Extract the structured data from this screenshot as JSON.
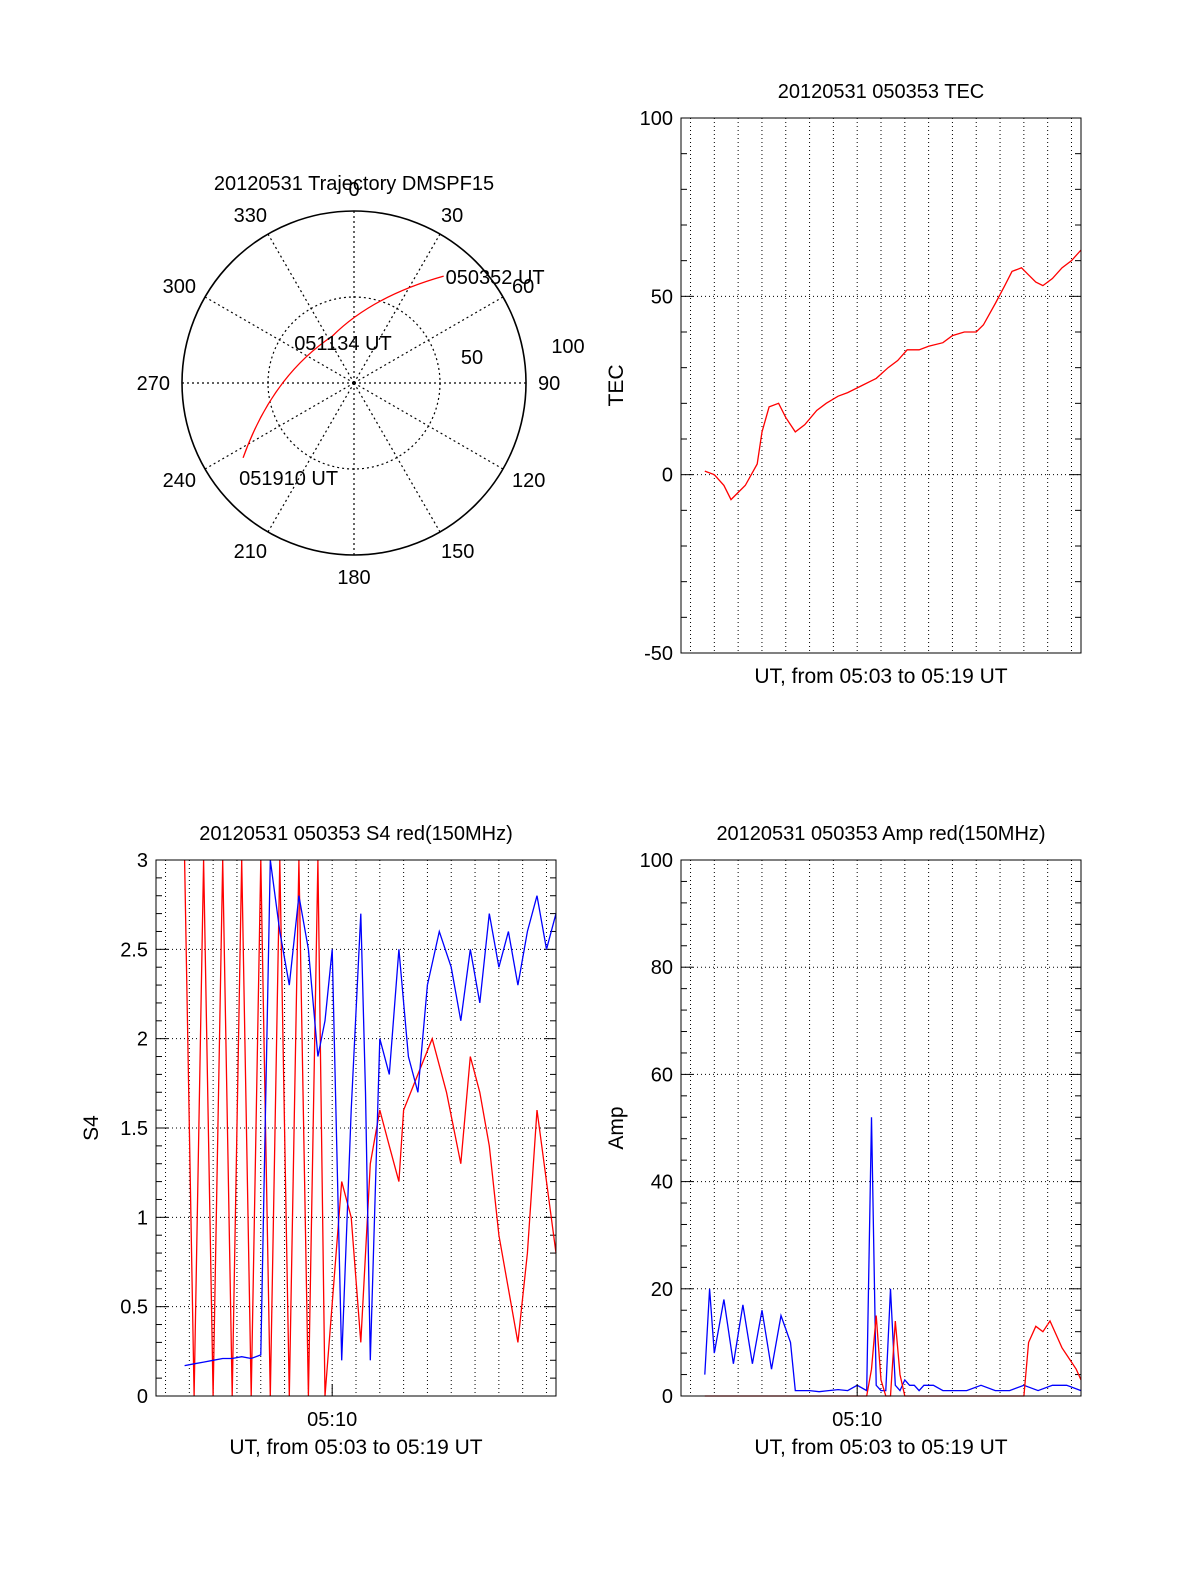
{
  "colors": {
    "red": "#ff0000",
    "blue": "#0000ff",
    "axis": "#000000",
    "grid": "#000000"
  },
  "chart_data": [
    {
      "id": "trajectory",
      "type": "polar-trajectory",
      "title": "20120531 Trajectory DMSPF15",
      "angle_labels": [
        "0",
        "30",
        "60",
        "90",
        "120",
        "150",
        "180",
        "210",
        "240",
        "270",
        "300",
        "330"
      ],
      "radius_labels": [
        "50",
        "100"
      ],
      "points": [
        {
          "azimuth": 40,
          "elevation": 17,
          "label": "050352 UT"
        },
        {
          "azimuth": 335,
          "elevation": 63,
          "label": "051134 UT"
        },
        {
          "azimuth": 236,
          "elevation": 20,
          "label": "051910 UT"
        }
      ],
      "grid": true
    },
    {
      "id": "tec",
      "type": "line",
      "title": "20120531 050353 TEC",
      "xlabel": "UT, from 05:03 to 05:19 UT",
      "ylabel": "TEC",
      "xlim": [
        "05:02.6",
        "05:19.4"
      ],
      "ylim": [
        -50,
        100
      ],
      "yticks": [
        "-50",
        "0",
        "50",
        "100"
      ],
      "grid": true,
      "series": [
        {
          "color": "red",
          "x": [
            3.6,
            4.0,
            4.4,
            4.7,
            5.0,
            5.3,
            5.8,
            6.0,
            6.3,
            6.7,
            7.0,
            7.4,
            7.8,
            8.3,
            8.7,
            9.2,
            9.6,
            10.2,
            10.8,
            11.3,
            11.7,
            12.1,
            12.6,
            13.0,
            13.6,
            14.0,
            14.5,
            15.0,
            15.3,
            15.8,
            16.2,
            16.5,
            16.9,
            17.2,
            17.5,
            17.8,
            18.2,
            18.6,
            19.0,
            19.4
          ],
          "y": [
            1,
            0,
            -3,
            -7,
            -5,
            -3,
            3,
            12,
            19,
            20,
            16,
            12,
            14,
            18,
            20,
            22,
            23,
            25,
            27,
            30,
            32,
            35,
            35,
            36,
            37,
            39,
            40,
            40,
            42,
            48,
            53,
            57,
            58,
            56,
            54,
            53,
            55,
            58,
            60,
            63
          ]
        }
      ]
    },
    {
      "id": "s4",
      "type": "line",
      "title": "20120531 050353 S4 red(150MHz)",
      "xlabel": "UT, from 05:03 to 05:19 UT",
      "ylabel": "S4",
      "xticklabel": "05:10",
      "xlim": [
        "05:02.6",
        "05:19.4"
      ],
      "ylim": [
        0,
        3
      ],
      "yticks": [
        "0",
        "0.5",
        "1",
        "1.5",
        "2",
        "2.5",
        "3"
      ],
      "grid": true,
      "series": [
        {
          "color": "red",
          "x": [
            3.8,
            4.2,
            4.6,
            5.0,
            5.4,
            5.8,
            6.2,
            6.6,
            7.0,
            7.4,
            7.8,
            8.2,
            8.6,
            9.0,
            9.4,
            9.7,
            10.4,
            10.8,
            11.2,
            11.6,
            12.0,
            12.4,
            12.8,
            13.0,
            13.6,
            14.2,
            14.8,
            15.4,
            15.8,
            16.2,
            16.6,
            17.0,
            17.4,
            17.8,
            18.2,
            18.6,
            19.0,
            19.4
          ],
          "y": [
            3,
            0,
            3,
            0,
            3,
            0,
            3,
            0,
            3,
            0,
            3,
            0,
            3,
            0,
            3,
            0,
            1.2,
            1.0,
            0.3,
            1.3,
            1.6,
            1.4,
            1.2,
            1.6,
            1.8,
            2.0,
            1.7,
            1.3,
            1.9,
            1.7,
            1.4,
            0.9,
            0.6,
            0.3,
            0.8,
            1.6,
            1.2,
            0.8
          ]
        },
        {
          "color": "blue",
          "x": [
            3.8,
            4.2,
            4.6,
            5.0,
            5.4,
            5.8,
            6.2,
            6.6,
            7.0,
            7.4,
            7.8,
            8.2,
            8.6,
            9.0,
            9.4,
            9.7,
            10.0,
            10.4,
            10.8,
            11.2,
            11.4,
            11.6,
            12.0,
            12.4,
            12.8,
            13.2,
            13.6,
            14.0,
            14.5,
            15.0,
            15.4,
            15.8,
            16.2,
            16.6,
            17.0,
            17.4,
            17.8,
            18.2,
            18.6,
            19.0,
            19.4
          ],
          "y": [
            0.17,
            0.18,
            0.19,
            0.2,
            0.21,
            0.21,
            0.22,
            0.21,
            0.23,
            3,
            2.6,
            2.3,
            2.8,
            2.5,
            1.9,
            2.1,
            2.5,
            0.2,
            1.6,
            2.7,
            1.7,
            0.2,
            2.0,
            1.8,
            2.5,
            1.9,
            1.7,
            2.3,
            2.6,
            2.4,
            2.1,
            2.5,
            2.2,
            2.7,
            2.4,
            2.6,
            2.3,
            2.6,
            2.8,
            2.5,
            2.7
          ]
        }
      ]
    },
    {
      "id": "amp",
      "type": "line",
      "title": "20120531 050353 Amp red(150MHz)",
      "xlabel": "UT, from 05:03 to 05:19 UT",
      "ylabel": "Amp",
      "xticklabel": "05:10",
      "xlim": [
        "05:02.6",
        "05:19.4"
      ],
      "ylim": [
        0,
        100
      ],
      "yticks": [
        "0",
        "20",
        "40",
        "60",
        "80",
        "100"
      ],
      "grid": true,
      "series": [
        {
          "color": "blue",
          "x": [
            3.6,
            3.8,
            4.0,
            4.4,
            4.8,
            5.2,
            5.6,
            6.0,
            6.4,
            6.8,
            7.2,
            7.4,
            7.6,
            8.0,
            8.4,
            8.8,
            9.2,
            9.6,
            10.0,
            10.4,
            10.6,
            10.8,
            11.0,
            11.2,
            11.4,
            11.6,
            11.8,
            12.0,
            12.2,
            12.4,
            12.6,
            12.8,
            13.2,
            13.6,
            14.0,
            14.6,
            15.2,
            15.8,
            16.4,
            17.0,
            17.6,
            18.2,
            18.8,
            19.4
          ],
          "y": [
            4,
            20,
            8,
            18,
            6,
            17,
            6,
            16,
            5,
            15,
            10,
            1,
            1,
            1,
            0.8,
            1,
            1.2,
            1,
            2,
            1,
            52,
            2,
            1,
            1,
            20,
            2,
            1,
            3,
            2,
            2,
            1,
            2,
            2,
            1,
            1,
            1,
            2,
            1,
            1,
            2,
            1,
            2,
            2,
            1
          ]
        },
        {
          "color": "red",
          "x": [
            3.6,
            5.0,
            7.0,
            8.0,
            10.4,
            10.6,
            10.8,
            11.0,
            11.2,
            11.4,
            11.6,
            11.8,
            12.0,
            14.0,
            16.0,
            17.0,
            17.2,
            17.5,
            17.8,
            18.1,
            18.4,
            18.6,
            18.9,
            19.2,
            19.4
          ],
          "y": [
            0,
            0,
            0,
            0,
            0,
            5,
            15,
            3,
            0,
            0,
            14,
            4,
            0,
            0,
            0,
            0,
            10,
            13,
            12,
            14,
            11,
            9,
            7,
            5,
            3
          ]
        }
      ]
    }
  ]
}
